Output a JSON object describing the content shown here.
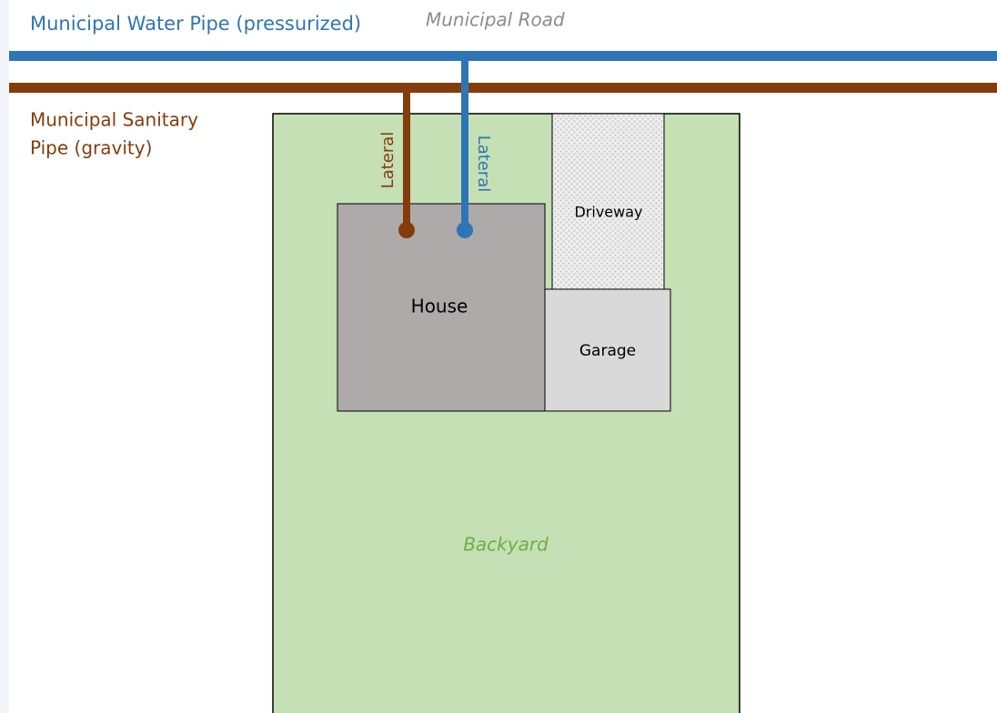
{
  "water_pipe": {
    "label": "Municipal Water Pipe (pressurized)"
  },
  "road": {
    "label": "Municipal Road"
  },
  "sanitary_pipe": {
    "label_lines": [
      "Municipal Sanitary",
      "Pipe (gravity)"
    ]
  },
  "laterals": [
    {
      "label": "Lateral"
    },
    {
      "label": "Lateral"
    }
  ],
  "lot": {
    "driveway": "Driveway",
    "house": "House",
    "garage": "Garage",
    "backyard": "Backyard"
  }
}
